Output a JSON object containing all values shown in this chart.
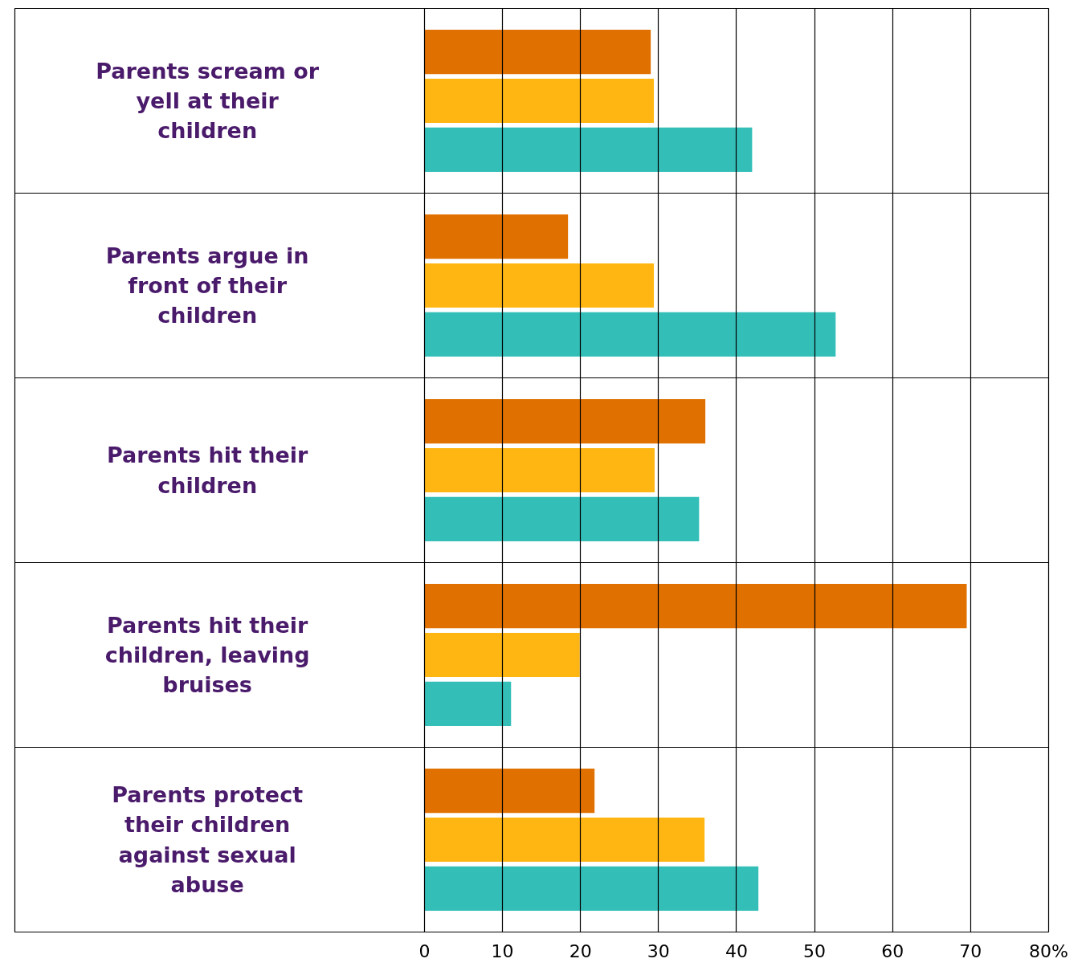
{
  "chart_data": {
    "type": "bar",
    "orientation": "horizontal",
    "grid": "x",
    "categories": [
      "Parents scream or yell at their children",
      "Parents argue in front of their children",
      "Parents hit their children",
      "Parents hit their children, leaving bruises",
      "Parents protect their children against sexual abuse"
    ],
    "series": [
      {
        "color": "#e07000",
        "values": [
          29.0,
          18.4,
          36.0,
          69.5,
          21.8
        ]
      },
      {
        "color": "#ffb612",
        "values": [
          29.4,
          29.4,
          29.5,
          19.9,
          35.9
        ]
      },
      {
        "color": "#33bfb8",
        "values": [
          42.0,
          52.7,
          35.2,
          11.1,
          42.8
        ]
      }
    ],
    "xlim": [
      0,
      80
    ],
    "xticks": [
      0,
      10,
      20,
      30,
      40,
      50,
      60,
      70,
      {
        "value": 80,
        "label": "80%"
      }
    ]
  }
}
